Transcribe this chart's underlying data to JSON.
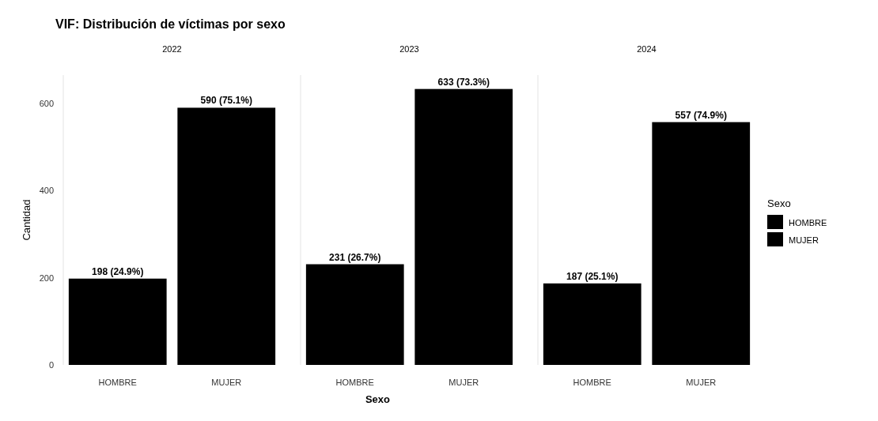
{
  "chart_data": [
    {
      "type": "bar",
      "title": "VIF: Distribución de víctimas por sexo",
      "subtitle": "2022",
      "ylabel": "Cantidad",
      "categories": [
        "HOMBRE",
        "MUJER"
      ],
      "series": [
        {
          "color": "#000000",
          "values": [
            198,
            null
          ],
          "value_labels": [
            "198 (24.9%)",
            null
          ]
        },
        {
          "color": "#000000",
          "values": [
            null,
            590
          ],
          "value_labels": [
            null,
            "590 (75.1%)"
          ]
        }
      ],
      "ylim": [
        0,
        665
      ],
      "yticks": [
        0,
        200,
        400,
        600
      ],
      "legend": false
    },
    {
      "type": "bar",
      "subtitle": "2023",
      "xlabel": "Sexo",
      "categories": [
        "HOMBRE",
        "MUJER"
      ],
      "series": [
        {
          "color": "#000000",
          "values": [
            231,
            null
          ],
          "value_labels": [
            "231 (26.7%)",
            null
          ]
        },
        {
          "color": "#000000",
          "values": [
            null,
            633
          ],
          "value_labels": [
            null,
            "633 (73.3%)"
          ]
        }
      ],
      "ylim": [
        0,
        665
      ],
      "tick_labels": "x",
      "legend": false
    },
    {
      "type": "bar",
      "subtitle": "2024",
      "legend_title": "Sexo",
      "categories": [
        "HOMBRE",
        "MUJER"
      ],
      "series": [
        {
          "name": "HOMBRE",
          "color": "#000000",
          "values": [
            187,
            null
          ],
          "value_labels": [
            "187 (25.1%)",
            null
          ]
        },
        {
          "name": "MUJER",
          "color": "#000000",
          "values": [
            null,
            557
          ],
          "value_labels": [
            null,
            "557 (74.9%)"
          ]
        }
      ],
      "ylim": [
        0,
        665
      ],
      "tick_labels": "x",
      "legend": "right"
    }
  ]
}
